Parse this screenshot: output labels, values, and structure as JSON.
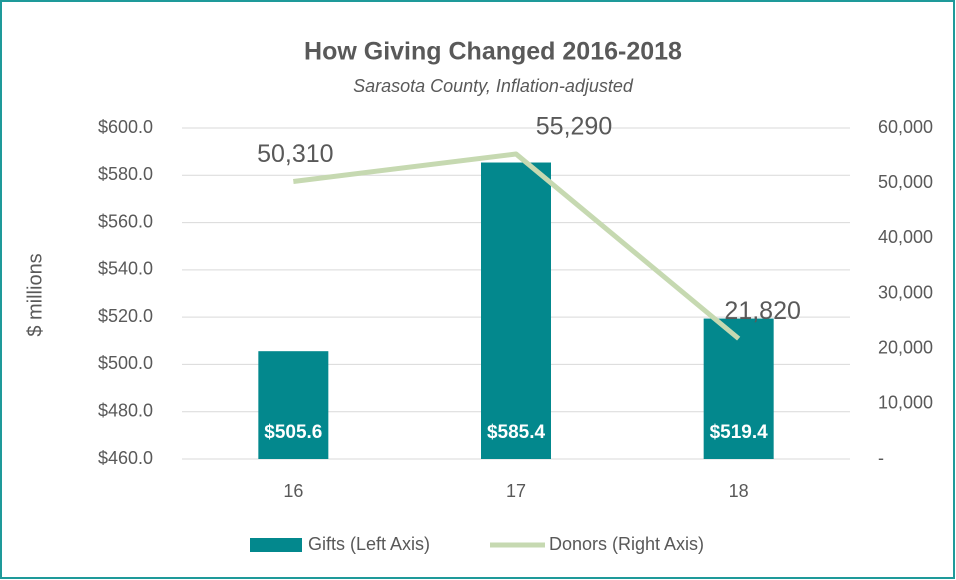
{
  "chart_data": {
    "type": "bar",
    "title": "How Giving Changed 2016-2018",
    "subtitle": "Sarasota County, Inflation-adjusted",
    "y_label": "$ millions",
    "categories": [
      "16",
      "17",
      "18"
    ],
    "series": [
      {
        "name": "Gifts (Left Axis)",
        "type": "bar",
        "color": "#03888d",
        "values": [
          505.6,
          585.4,
          519.4
        ],
        "value_labels": [
          "$505.6",
          "$585.4",
          "$519.4"
        ]
      },
      {
        "name": "Donors (Right Axis)",
        "type": "line",
        "axis": "y2",
        "color": "#c6d9b1",
        "values": [
          50310,
          55290,
          21820
        ],
        "value_labels": [
          "50,310",
          "55,290",
          "21,820"
        ]
      }
    ],
    "ylim": [
      460,
      600
    ],
    "yticks": [
      {
        "value": 460,
        "label": "$460.0"
      },
      {
        "value": 480,
        "label": "$480.0"
      },
      {
        "value": 500,
        "label": "$500.0"
      },
      {
        "value": 520,
        "label": "$520.0"
      },
      {
        "value": 540,
        "label": "$540.0"
      },
      {
        "value": 560,
        "label": "$560.0"
      },
      {
        "value": 580,
        "label": "$580.0"
      },
      {
        "value": 600,
        "label": "$600.0"
      }
    ],
    "y2lim": [
      0,
      60000
    ],
    "y2ticks": [
      {
        "value": 0,
        "label": "-"
      },
      {
        "value": 10000,
        "label": "10,000"
      },
      {
        "value": 20000,
        "label": "20,000"
      },
      {
        "value": 30000,
        "label": "30,000"
      },
      {
        "value": 40000,
        "label": "40,000"
      },
      {
        "value": 50000,
        "label": "50,000"
      },
      {
        "value": 60000,
        "label": "60,000"
      }
    ],
    "grid": true,
    "legend": "bottom"
  }
}
